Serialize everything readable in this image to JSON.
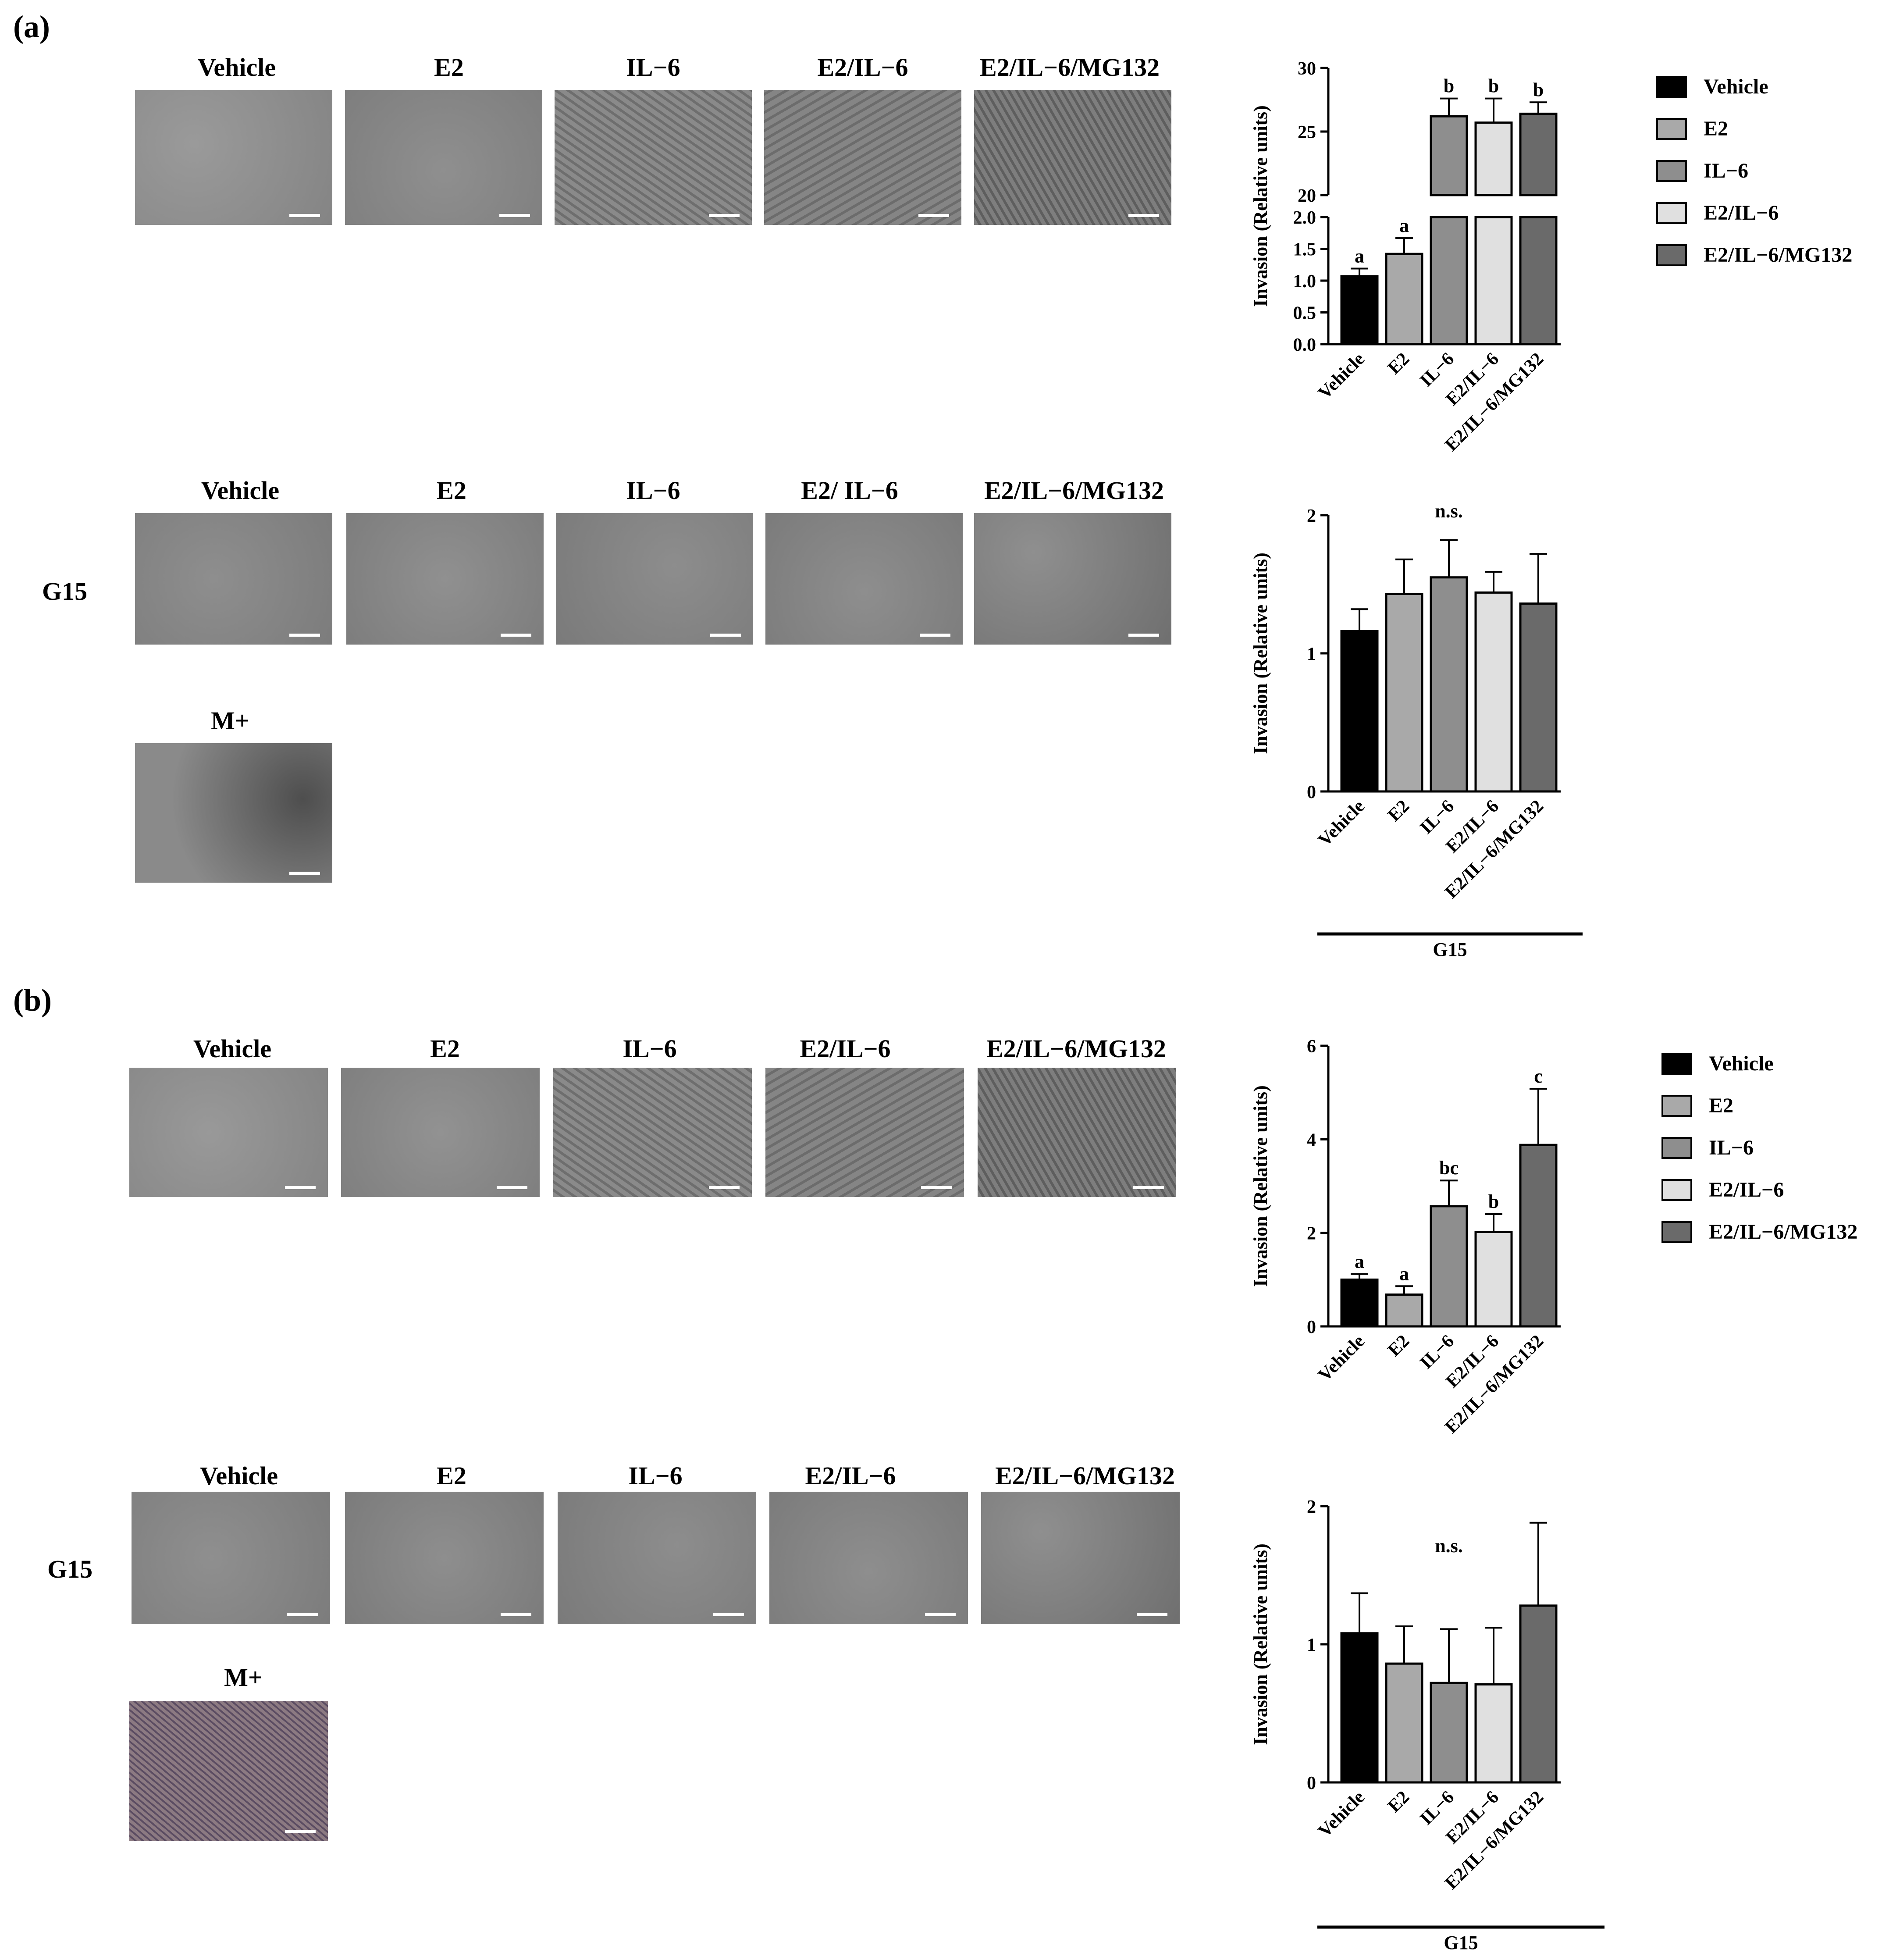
{
  "panels": [
    {
      "letter": "(a)",
      "treatments": [
        "Vehicle",
        "E2",
        "IL−6",
        "E2/IL−6",
        "E2/IL−6/MG132"
      ],
      "g15_treatments": [
        "Vehicle",
        "E2",
        "IL−6",
        "E2/ IL−6",
        "E2/IL−6/MG132"
      ],
      "row_label": "G15",
      "positive_control_label": "M+"
    },
    {
      "letter": "(b)",
      "treatments": [
        "Vehicle",
        "E2",
        "IL−6",
        "E2/IL−6",
        "E2/IL−6/MG132"
      ],
      "g15_treatments": [
        "Vehicle",
        "E2",
        "IL−6",
        "E2/IL−6",
        "E2/IL−6/MG132"
      ],
      "row_label": "G15",
      "positive_control_label": "M+"
    }
  ],
  "legend": {
    "items": [
      {
        "label": "Vehicle",
        "color": "#000000"
      },
      {
        "label": "E2",
        "color": "#a9a9a9"
      },
      {
        "label": "IL−6",
        "color": "#8e8e8e"
      },
      {
        "label": "E2/IL−6",
        "color": "#e0e0e0"
      },
      {
        "label": "E2/IL−6/MG132",
        "color": "#6a6a6a"
      }
    ]
  },
  "colors": {
    "bars": [
      "#000000",
      "#a9a9a9",
      "#8e8e8e",
      "#e0e0e0",
      "#6a6a6a"
    ],
    "micro_gray": "#8a8a8a",
    "micro_purple": "#8c7a82"
  },
  "chart_data": [
    {
      "type": "bar",
      "panel": "(a)",
      "broken_axis": true,
      "categories": [
        "Vehicle",
        "E2",
        "IL−6",
        "E2/IL−6",
        "E2/IL−6/MG132"
      ],
      "values": [
        1.07,
        1.42,
        26.2,
        25.7,
        26.4
      ],
      "errors": [
        0.12,
        0.25,
        1.4,
        1.9,
        0.9
      ],
      "letters": [
        "a",
        "a",
        "b",
        "b",
        "b"
      ],
      "ylabel": "Invasion (Relative units)",
      "ylim_lower": [
        0,
        2.0
      ],
      "ylim_upper": [
        20,
        30
      ],
      "yticks_lower": [
        "0.0",
        "0.5",
        "1.0",
        "1.5",
        "2.0"
      ],
      "yticks_upper": [
        "20",
        "25",
        "30"
      ],
      "group_label": ""
    },
    {
      "type": "bar",
      "panel": "(a)",
      "categories": [
        "Vehicle",
        "E2",
        "IL−6",
        "E2/IL−6",
        "E2/IL−6/MG132"
      ],
      "values": [
        1.16,
        1.43,
        1.55,
        1.44,
        1.36
      ],
      "errors": [
        0.16,
        0.25,
        0.27,
        0.15,
        0.36
      ],
      "annotation": "n.s.",
      "ylabel": "Invasion (Relative units)",
      "ylim": [
        0,
        2
      ],
      "yticks": [
        "0",
        "1",
        "2"
      ],
      "group_label": "G15"
    },
    {
      "type": "bar",
      "panel": "(b)",
      "categories": [
        "Vehicle",
        "E2",
        "IL−6",
        "E2/IL−6",
        "E2/IL−6/MG132"
      ],
      "values": [
        1.0,
        0.68,
        2.57,
        2.02,
        3.88
      ],
      "errors": [
        0.12,
        0.18,
        0.55,
        0.38,
        1.2
      ],
      "letters": [
        "a",
        "a",
        "bc",
        "b",
        "c"
      ],
      "ylabel": "Invasion (Relative units)",
      "ylim": [
        0,
        6
      ],
      "yticks": [
        "0",
        "2",
        "4",
        "6"
      ],
      "group_label": ""
    },
    {
      "type": "bar",
      "panel": "(b)",
      "categories": [
        "Vehicle",
        "E2",
        "IL−6",
        "E2/IL−6",
        "E2/IL−6/MG132"
      ],
      "values": [
        1.08,
        0.86,
        0.72,
        0.71,
        1.28
      ],
      "errors": [
        0.29,
        0.27,
        0.39,
        0.41,
        0.6
      ],
      "annotation": "n.s.",
      "ylabel": "Invasion (Relative units)",
      "ylim": [
        0,
        2
      ],
      "yticks": [
        "0",
        "1",
        "2"
      ],
      "group_label": "G15"
    }
  ]
}
